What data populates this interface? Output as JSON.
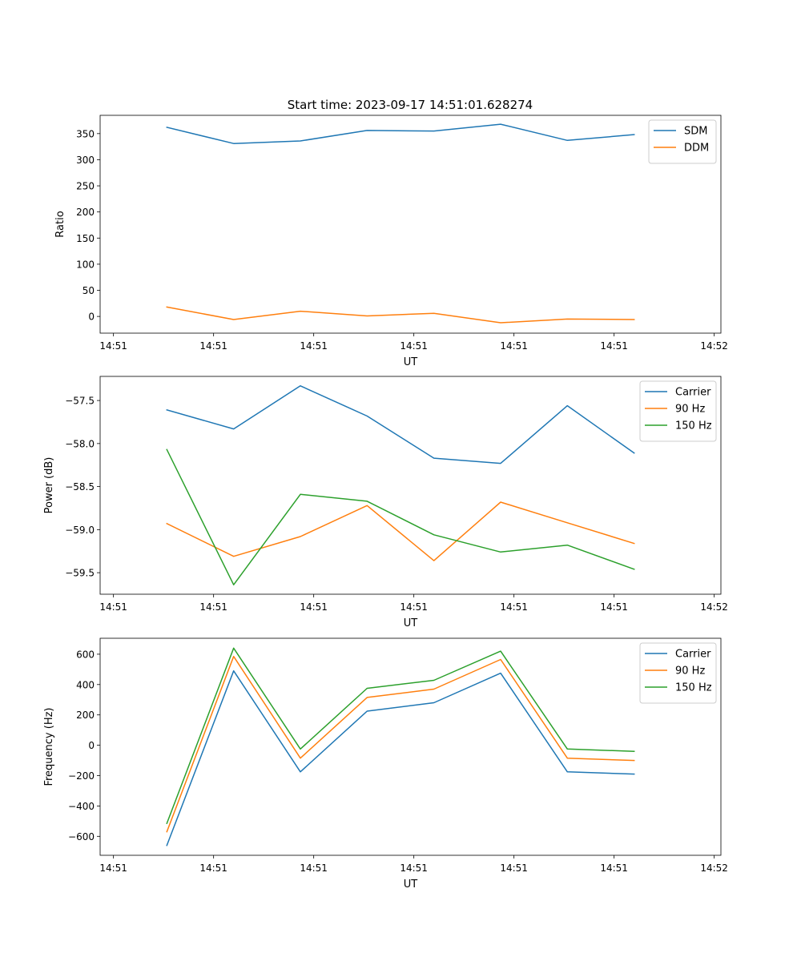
{
  "figure": {
    "title": "Start time: 2023-09-17 14:51:01.628274"
  },
  "colors": {
    "c0": "#1f77b4",
    "c1": "#ff7f0e",
    "c2": "#2ca02c"
  },
  "chart_data": [
    {
      "type": "line",
      "title": "Start time: 2023-09-17 14:51:01.628274",
      "xlabel": "UT",
      "ylabel": "Ratio",
      "x": [
        1,
        2,
        3,
        4,
        5,
        6,
        7,
        8
      ],
      "xlim": [
        0,
        9.3
      ],
      "ylim": [
        -32,
        385
      ],
      "xticks": [
        0.2,
        1.7,
        3.2,
        4.7,
        6.2,
        7.7,
        9.2
      ],
      "xticklabels": [
        "14:51",
        "14:51",
        "14:51",
        "14:51",
        "14:51",
        "14:51",
        "14:52"
      ],
      "yticks": [
        0,
        50,
        100,
        150,
        200,
        250,
        300,
        350
      ],
      "yticklabels": [
        "0",
        "50",
        "100",
        "150",
        "200",
        "250",
        "300",
        "350"
      ],
      "legend": "top-right",
      "series": [
        {
          "name": "SDM",
          "color": "#1f77b4",
          "values": [
            362,
            331,
            336,
            356,
            355,
            368,
            337,
            348
          ]
        },
        {
          "name": "DDM",
          "color": "#ff7f0e",
          "values": [
            18,
            -6,
            10,
            1,
            6,
            -12,
            -5,
            -6
          ]
        }
      ]
    },
    {
      "type": "line",
      "title": "",
      "xlabel": "UT",
      "ylabel": "Power (dB)",
      "x": [
        1,
        2,
        3,
        4,
        5,
        6,
        7,
        8
      ],
      "xlim": [
        0,
        9.3
      ],
      "ylim": [
        -59.75,
        -57.22
      ],
      "xticks": [
        0.2,
        1.7,
        3.2,
        4.7,
        6.2,
        7.7,
        9.2
      ],
      "xticklabels": [
        "14:51",
        "14:51",
        "14:51",
        "14:51",
        "14:51",
        "14:51",
        "14:52"
      ],
      "yticks": [
        -59.5,
        -59.0,
        -58.5,
        -58.0,
        -57.5
      ],
      "yticklabels": [
        "−59.5",
        "−59.0",
        "−58.5",
        "−58.0",
        "−57.5"
      ],
      "legend": "top-right",
      "series": [
        {
          "name": "Carrier",
          "color": "#1f77b4",
          "values": [
            -57.61,
            -57.83,
            -57.33,
            -57.68,
            -58.17,
            -58.23,
            -57.56,
            -58.11
          ]
        },
        {
          "name": "90 Hz",
          "color": "#ff7f0e",
          "values": [
            -58.93,
            -59.31,
            -59.08,
            -58.72,
            -59.36,
            -58.68,
            -58.92,
            -59.16
          ]
        },
        {
          "name": "150 Hz",
          "color": "#2ca02c",
          "values": [
            -58.07,
            -59.64,
            -58.59,
            -58.67,
            -59.06,
            -59.26,
            -59.18,
            -59.46
          ]
        }
      ]
    },
    {
      "type": "line",
      "title": "",
      "xlabel": "UT",
      "ylabel": "Frequency (Hz)",
      "x": [
        1,
        2,
        3,
        4,
        5,
        6,
        7,
        8
      ],
      "xlim": [
        0,
        9.3
      ],
      "ylim": [
        -725,
        705
      ],
      "xticks": [
        0.2,
        1.7,
        3.2,
        4.7,
        6.2,
        7.7,
        9.2
      ],
      "xticklabels": [
        "14:51",
        "14:51",
        "14:51",
        "14:51",
        "14:51",
        "14:51",
        "14:52"
      ],
      "yticks": [
        -600,
        -400,
        -200,
        0,
        200,
        400,
        600
      ],
      "yticklabels": [
        "−600",
        "−400",
        "−200",
        "0",
        "200",
        "400",
        "600"
      ],
      "legend": "top-right",
      "series": [
        {
          "name": "Carrier",
          "color": "#1f77b4",
          "values": [
            -660,
            490,
            -175,
            225,
            280,
            475,
            -175,
            -190
          ]
        },
        {
          "name": "90 Hz",
          "color": "#ff7f0e",
          "values": [
            -570,
            585,
            -85,
            315,
            370,
            565,
            -85,
            -100
          ]
        },
        {
          "name": "150 Hz",
          "color": "#2ca02c",
          "values": [
            -515,
            640,
            -25,
            375,
            428,
            620,
            -25,
            -40
          ]
        }
      ]
    }
  ]
}
